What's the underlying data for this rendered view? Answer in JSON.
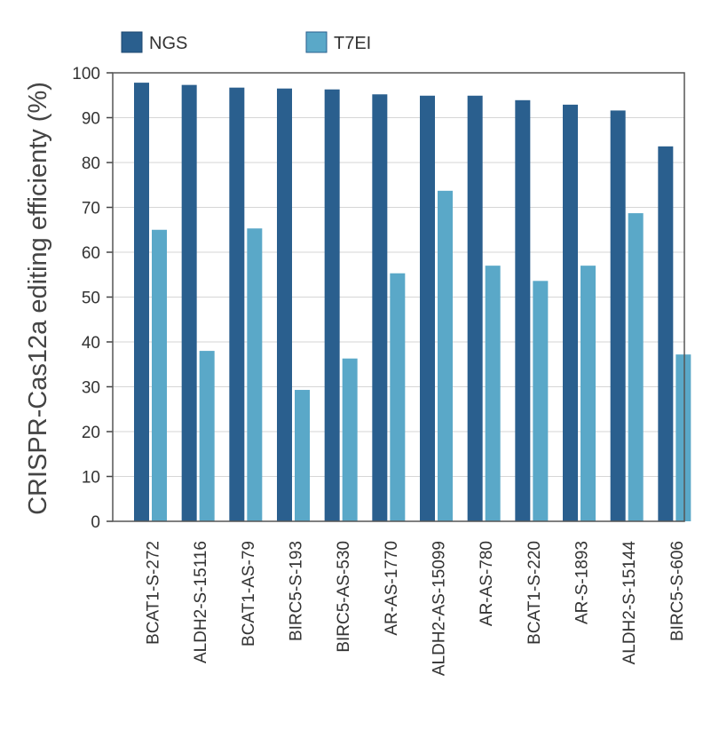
{
  "chart_data": {
    "type": "bar",
    "title": "",
    "xlabel": "",
    "ylabel": "CRISPR-Cas12a editing efficienty (%)",
    "ylim": [
      0,
      100
    ],
    "yticks": [
      0,
      10,
      20,
      30,
      40,
      50,
      60,
      70,
      80,
      90,
      100
    ],
    "grid": true,
    "legend_position": "top-left",
    "categories": [
      "BCAT1-S-272",
      "ALDH2-S-15116",
      "BCAT1-AS-79",
      "BIRC5-S-193",
      "BIRC5-AS-530",
      "AR-AS-1770",
      "ALDH2-AS-15099",
      "AR-AS-780",
      "BCAT1-S-220",
      "AR-S-1893",
      "ALDH2-S-15144",
      "BIRC5-S-606"
    ],
    "series": [
      {
        "name": "NGS",
        "color": "#2a5f8e",
        "values": [
          97.8,
          97.3,
          96.7,
          96.5,
          96.3,
          95.2,
          94.9,
          94.9,
          93.9,
          92.9,
          91.6,
          83.6
        ]
      },
      {
        "name": "T7EI",
        "color": "#5aa8c8",
        "values": [
          65.0,
          38.0,
          65.3,
          29.3,
          36.3,
          55.3,
          73.7,
          57.0,
          53.6,
          57.0,
          68.7,
          37.2
        ]
      }
    ]
  }
}
